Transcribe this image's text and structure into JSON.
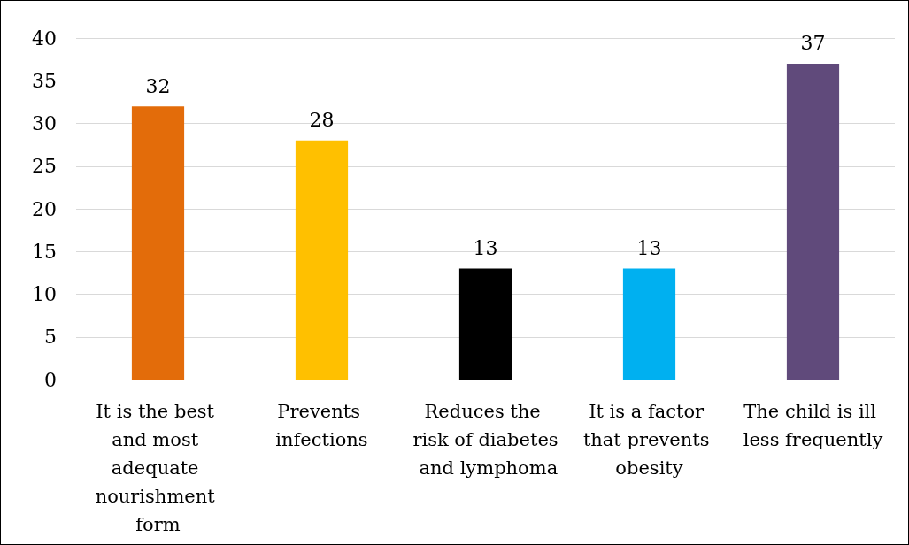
{
  "chart_data": {
    "type": "bar",
    "categories": [
      "It is the best and most adequate nourishment form",
      "Prevents infections",
      "Reduces the risk of diabetes and lymphoma",
      "It is a factor that prevents obesity",
      "The child is ill less frequently"
    ],
    "values": [
      32,
      28,
      13,
      13,
      37
    ],
    "colors": [
      "#e36c0a",
      "#ffc000",
      "#000000",
      "#00b0f0",
      "#604a7b"
    ],
    "ylim": [
      0,
      40
    ],
    "yticks": [
      0,
      5,
      10,
      15,
      20,
      25,
      30,
      35,
      40
    ],
    "grid": "y",
    "data_labels": true
  }
}
